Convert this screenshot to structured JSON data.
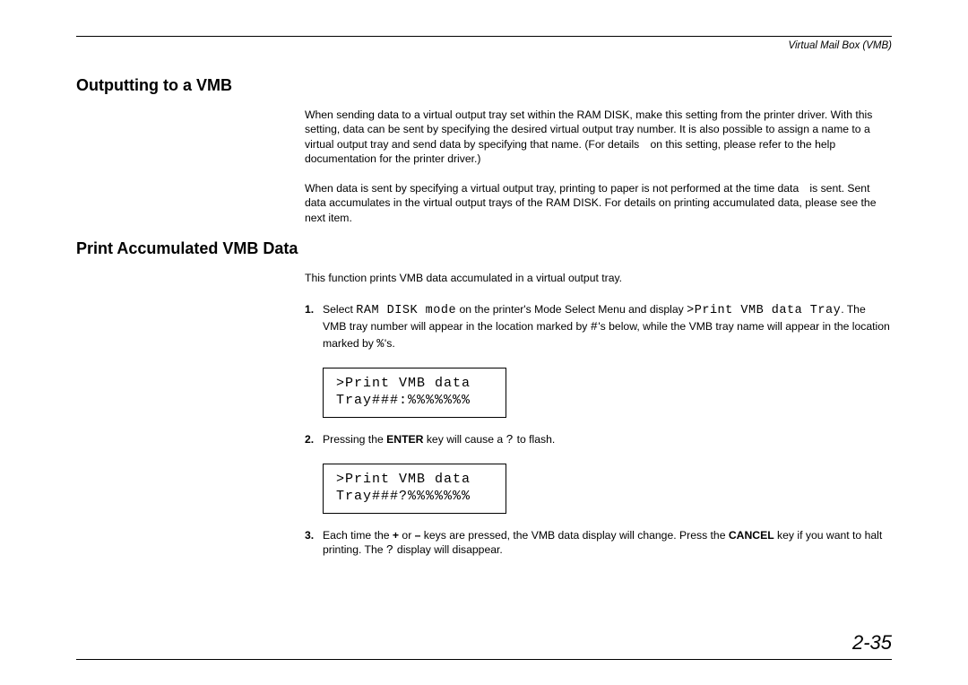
{
  "header": {
    "label": "Virtual Mail Box (VMB)"
  },
  "section1": {
    "heading": "Outputting to a VMB",
    "para1": "When sending data to a virtual output tray set within the RAM DISK, make this setting from the printer driver. With this setting, data can be sent by specifying the desired virtual output tray number. It is also possible to assign a name to a virtual output tray and send data by specifying that name. (For details on this setting, please refer to the help documentation for the printer driver.)",
    "para2": "When data is sent by specifying a virtual output tray, printing to paper is not performed at the time data is sent. Sent data accumulates in the virtual output trays of the RAM DISK. For details on printing accumulated data, please see the next item."
  },
  "section2": {
    "heading": "Print Accumulated VMB Data",
    "intro": "This function prints VMB data accumulated in a virtual output tray.",
    "step1": {
      "num": "1.",
      "t1": "Select ",
      "mono1": "RAM DISK mode",
      "t2": " on the printer's Mode Select Menu and display ",
      "mono2": ">Print VMB data Tray",
      "t3": ". The VMB tray number will appear in the location marked by ",
      "mono3": "#",
      "t4": "'s below, while the VMB tray name will appear in the location marked by ",
      "mono4": "%",
      "t5": "'s.",
      "display": ">Print VMB data\nTray###:%%%%%%%"
    },
    "step2": {
      "num": "2.",
      "t1": "Pressing the ",
      "b1": "ENTER",
      "t2": " key will cause a ",
      "mono1": "?",
      "t3": " to flash.",
      "display": ">Print VMB data\nTray###?%%%%%%%"
    },
    "step3": {
      "num": "3.",
      "t1": "Each time the ",
      "b1": "+",
      "t2": " or ",
      "b2": "–",
      "t3": " keys are pressed, the VMB data display will change. Press the ",
      "b3": "CANCEL",
      "t4": " key if you want to halt printing. The ",
      "mono1": "?",
      "t5": " display will disappear."
    }
  },
  "footer": {
    "page_number": "2-35"
  }
}
